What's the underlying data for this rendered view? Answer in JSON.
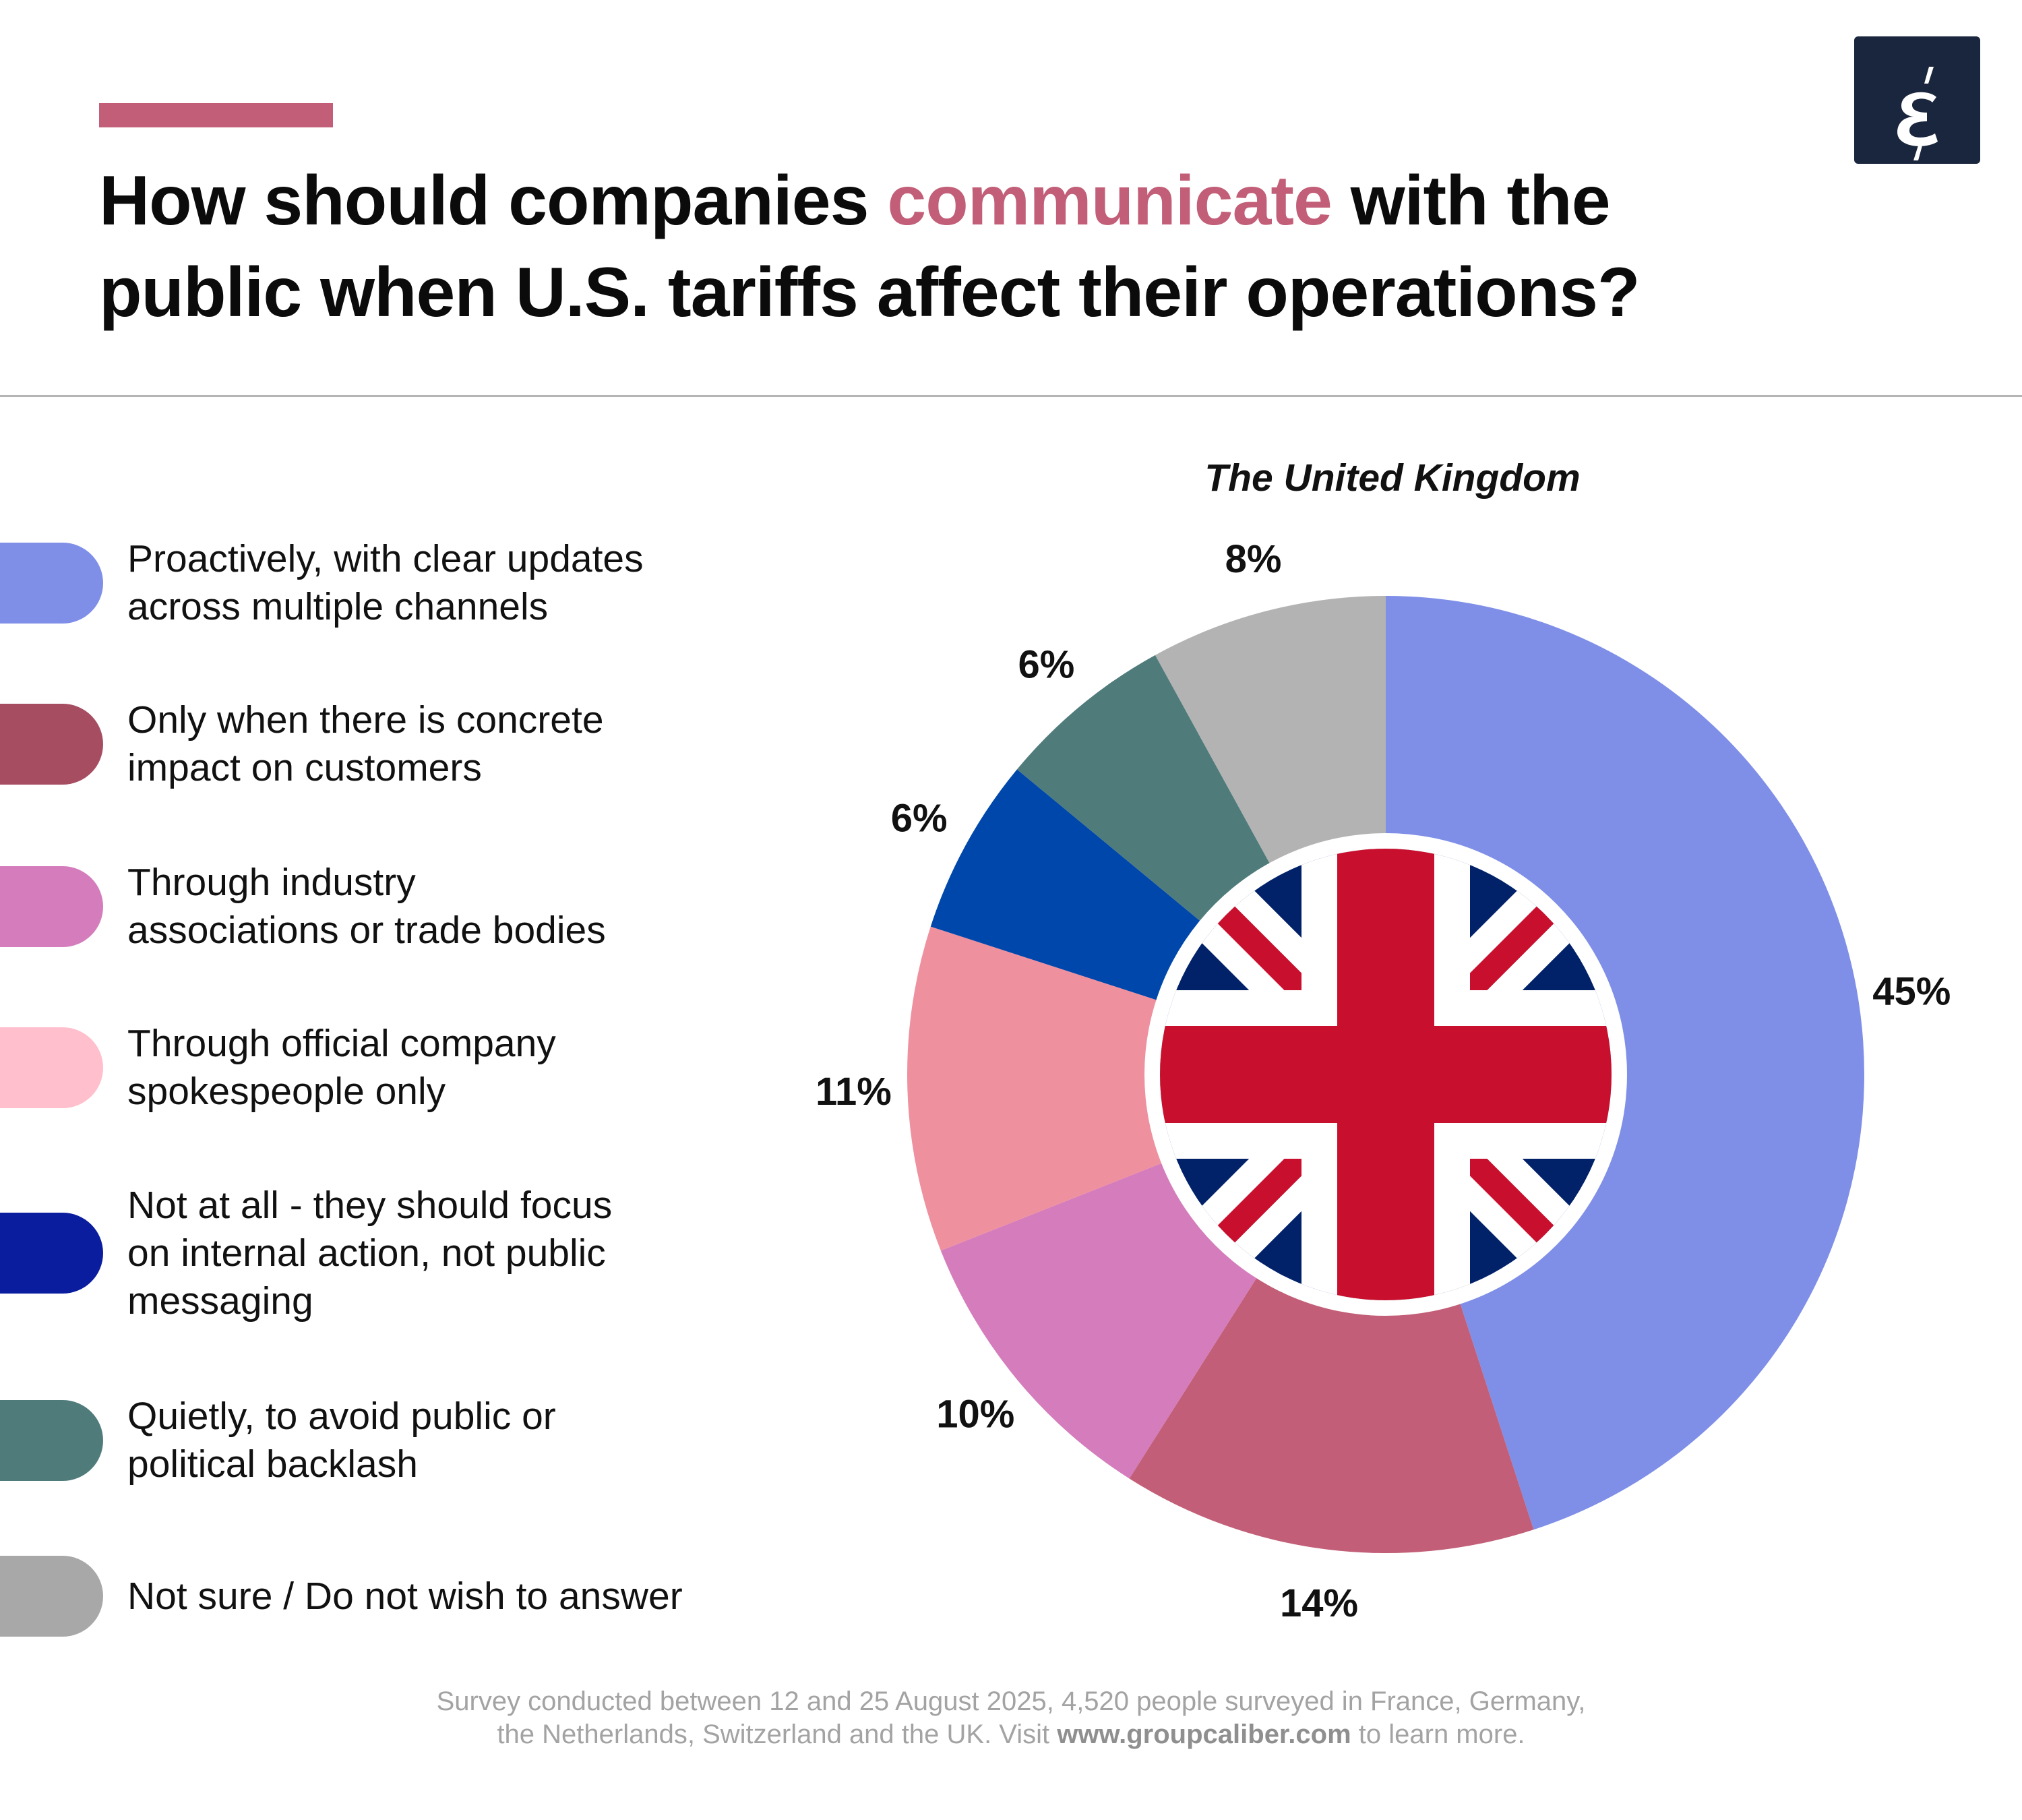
{
  "header": {
    "title_before": "How should companies ",
    "title_highlight": "communicate",
    "title_after": " with the public when U.S. tariffs affect their operations?",
    "accent_color": "#c25e77",
    "logo_glyph": "έ"
  },
  "chart_data": {
    "type": "pie",
    "variant": "donut",
    "title": "The United Kingdom",
    "center_image": "union-jack-flag",
    "start": "top, clockwise",
    "legend_position": "left",
    "slices": [
      {
        "label": "Proactively, with clear updates\nacross multiple channels",
        "value": 45,
        "value_label": "45%",
        "color": "#7f8fe8",
        "legend_color": "#7f8fe8"
      },
      {
        "label": "Only when there is concrete\nimpact on customers",
        "value": 14,
        "value_label": "14%",
        "color": "#c25e77",
        "legend_color": "#a64d62"
      },
      {
        "label": "Through industry\nassociations or trade bodies",
        "value": 10,
        "value_label": "10%",
        "color": "#d47cbc",
        "legend_color": "#d47cbc"
      },
      {
        "label": "Through official company\nspokespeople only",
        "value": 11,
        "value_label": "11%",
        "color": "#ef909f",
        "legend_color": "#ffbfcc"
      },
      {
        "label": "Not at all - they should focus\non internal action, not public\nmessaging",
        "value": 6,
        "value_label": "6%",
        "color": "#0047ab",
        "legend_color": "#0a1d9e"
      },
      {
        "label": "Quietly, to avoid public or\npolitical backlash",
        "value": 6,
        "value_label": "6%",
        "color": "#4f7c7b",
        "legend_color": "#4f7c7b"
      },
      {
        "label": "Not sure / Do not wish to answer",
        "value": 8,
        "value_label": "8%",
        "color": "#b3b3b3",
        "legend_color": "#a8a8a8"
      }
    ]
  },
  "footer": {
    "line1": "Survey conducted between 12 and 25 August 2025, 4,520 people surveyed in France, Germany,",
    "line2_before": "the Netherlands, Switzerland and the UK. Visit ",
    "link": "www.groupcaliber.com",
    "line2_after": " to learn more."
  }
}
